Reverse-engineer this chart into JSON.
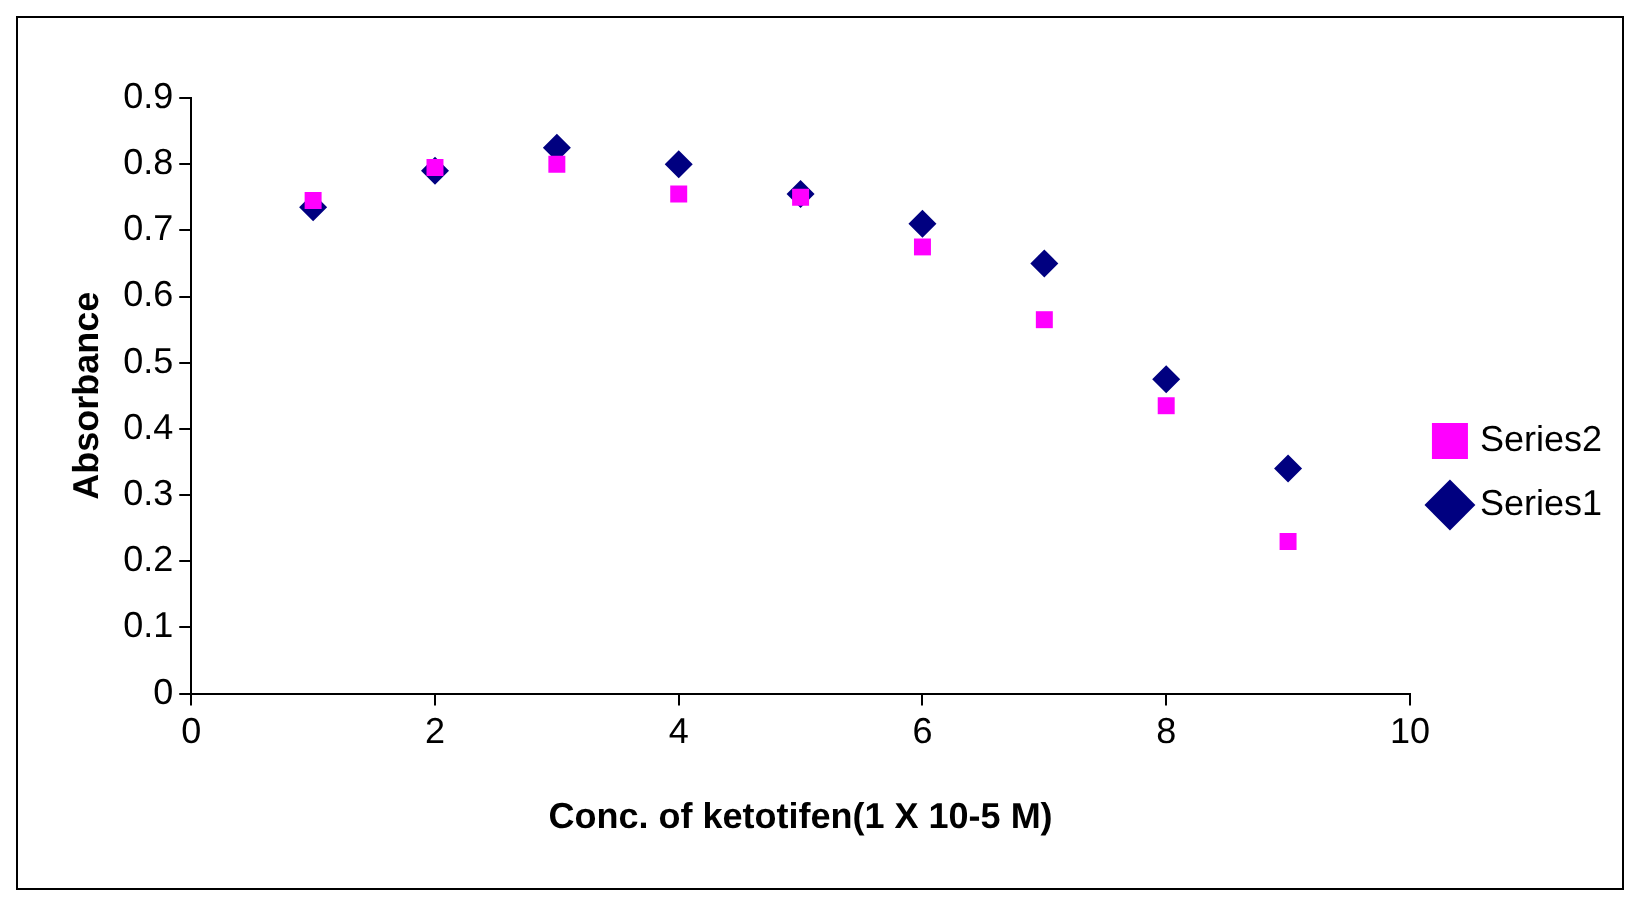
{
  "chart_data": {
    "type": "scatter",
    "xlabel": "Conc. of ketotifen(1 X 10-5 M)",
    "ylabel": "Absorbance",
    "x": [
      1,
      2,
      3,
      4,
      5,
      6,
      7,
      8,
      9
    ],
    "series": [
      {
        "name": "Series1",
        "color": "#000080",
        "marker": "diamond",
        "values": [
          0.735,
          0.79,
          0.825,
          0.8,
          0.755,
          0.71,
          0.65,
          0.475,
          0.34
        ]
      },
      {
        "name": "Series2",
        "color": "#ff00ff",
        "marker": "square",
        "values": [
          0.745,
          0.795,
          0.8,
          0.755,
          0.75,
          0.675,
          0.565,
          0.435,
          0.23
        ]
      }
    ],
    "xlim": [
      0,
      10
    ],
    "xticks": [
      0,
      2,
      4,
      6,
      8,
      10
    ],
    "ylim": [
      0,
      0.9
    ],
    "yticks": [
      0,
      0.1,
      0.2,
      0.3,
      0.4,
      0.5,
      0.6,
      0.7,
      0.8,
      0.9
    ],
    "grid": false,
    "legend": "right"
  }
}
